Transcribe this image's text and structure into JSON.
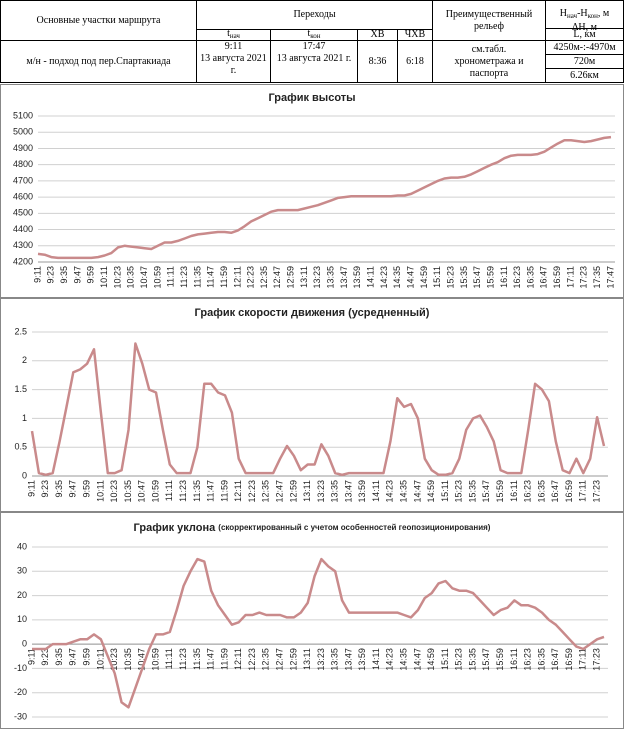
{
  "table": {
    "header": {
      "route": "Основные участки маршрута",
      "transitions": "Переходы",
      "t_start": {
        "base": "t",
        "sub": "нач"
      },
      "t_end": {
        "base": "t",
        "sub": "кон"
      },
      "hv": "ХВ",
      "chv": "ЧХВ",
      "relief": "Преимущественный рельеф",
      "h_range": {
        "h1": "H",
        "s1": "нач",
        "h2": "-H",
        "s2": "кон",
        "unit": ", м"
      },
      "dh": "ΔH, м",
      "l": "L, км"
    },
    "row": {
      "route": "м/н - подход под пер.Спартакиада",
      "t_start_time": "9:11",
      "t_start_date": "13 августа 2021 г.",
      "t_end_time": "17:47",
      "t_end_date": "13 августа 2021 г.",
      "hv": "8:36",
      "chv": "6:18",
      "relief": "см.табл. хронометража и паспорта",
      "h_range": "4250м-:-4970м",
      "dh": "720м",
      "l": "6.26км"
    }
  },
  "chart_data": [
    {
      "type": "line",
      "title": "График высоты",
      "color": "#c98a8b",
      "grid": true,
      "ylim": [
        4200,
        5100
      ],
      "yticks": [
        4200,
        4300,
        4400,
        4500,
        4600,
        4700,
        4800,
        4900,
        5000,
        5100
      ],
      "categories": [
        "9:11",
        null,
        "9:23",
        null,
        "9:35",
        null,
        "9:47",
        null,
        "9:59",
        null,
        "10:11",
        null,
        "10:23",
        null,
        "10:35",
        null,
        "10:47",
        null,
        "10:59",
        null,
        "11:11",
        null,
        "11:23",
        null,
        "11:35",
        null,
        "11:47",
        null,
        "11:59",
        null,
        "12:11",
        null,
        "12:23",
        null,
        "12:35",
        null,
        "12:47",
        null,
        "12:59",
        null,
        "13:11",
        null,
        "13:23",
        null,
        "13:35",
        null,
        "13:47",
        null,
        "13:59",
        null,
        "14:11",
        null,
        "14:23",
        null,
        "14:35",
        null,
        "14:47",
        null,
        "14:59",
        null,
        "15:11",
        null,
        "15:23",
        null,
        "15:35",
        null,
        "15:47",
        null,
        "15:59",
        null,
        "16:11",
        null,
        "16:23",
        null,
        "16:35",
        null,
        "16:47",
        null,
        "16:59",
        null,
        "17:11",
        null,
        "17:23",
        null,
        "17:35",
        null,
        "17:47"
      ],
      "values": [
        4250,
        4245,
        4230,
        4225,
        4225,
        4225,
        4225,
        4225,
        4225,
        4230,
        4240,
        4255,
        4290,
        4300,
        4295,
        4290,
        4285,
        4280,
        4300,
        4320,
        4320,
        4330,
        4345,
        4360,
        4370,
        4375,
        4380,
        4385,
        4385,
        4380,
        4395,
        4420,
        4450,
        4470,
        4490,
        4510,
        4520,
        4520,
        4520,
        4520,
        4530,
        4540,
        4550,
        4565,
        4580,
        4595,
        4600,
        4605,
        4605,
        4605,
        4605,
        4605,
        4605,
        4605,
        4610,
        4610,
        4620,
        4640,
        4660,
        4680,
        4700,
        4715,
        4720,
        4720,
        4725,
        4740,
        4760,
        4780,
        4800,
        4815,
        4840,
        4855,
        4860,
        4860,
        4860,
        4865,
        4880,
        4905,
        4930,
        4950,
        4950,
        4945,
        4940,
        4945,
        4955,
        4965,
        4970
      ]
    },
    {
      "type": "line",
      "title": "График скорости движения (усредненный)",
      "color": "#c98a8b",
      "grid": true,
      "ylim": [
        0,
        2.5
      ],
      "yticks": [
        0,
        0.5,
        1,
        1.5,
        2,
        2.5
      ],
      "categories": [
        "9:11",
        null,
        "9:23",
        null,
        "9:35",
        null,
        "9:47",
        null,
        "9:59",
        null,
        "10:11",
        null,
        "10:23",
        null,
        "10:35",
        null,
        "10:47",
        null,
        "10:59",
        null,
        "11:11",
        null,
        "11:23",
        null,
        "11:35",
        null,
        "11:47",
        null,
        "11:59",
        null,
        "12:11",
        null,
        "12:23",
        null,
        "12:35",
        null,
        "12:47",
        null,
        "12:59",
        null,
        "13:11",
        null,
        "13:23",
        null,
        "13:35",
        null,
        "13:47",
        null,
        "13:59",
        null,
        "14:11",
        null,
        "14:23",
        null,
        "14:35",
        null,
        "14:47",
        null,
        "14:59",
        null,
        "15:11",
        null,
        "15:23",
        null,
        "15:35",
        null,
        "15:47",
        null,
        "15:59",
        null,
        "16:11",
        null,
        "16:23",
        null,
        "16:35",
        null,
        "16:47",
        null,
        "16:59",
        null,
        "17:11",
        null,
        "17:23",
        null
      ],
      "values": [
        0.78,
        0.05,
        0.02,
        0.05,
        0.6,
        1.2,
        1.8,
        1.85,
        1.95,
        2.2,
        1.1,
        0.05,
        0.05,
        0.1,
        0.8,
        2.3,
        1.95,
        1.5,
        1.45,
        0.8,
        0.2,
        0.05,
        0.05,
        0.05,
        0.5,
        1.6,
        1.6,
        1.45,
        1.4,
        1.1,
        0.3,
        0.05,
        0.05,
        0.05,
        0.05,
        0.05,
        0.3,
        0.52,
        0.35,
        0.1,
        0.2,
        0.2,
        0.55,
        0.35,
        0.05,
        0.02,
        0.05,
        0.05,
        0.05,
        0.05,
        0.05,
        0.05,
        0.6,
        1.35,
        1.2,
        1.25,
        1.0,
        0.3,
        0.1,
        0.02,
        0.02,
        0.05,
        0.3,
        0.8,
        1.0,
        1.05,
        0.85,
        0.6,
        0.1,
        0.05,
        0.05,
        0.05,
        0.8,
        1.6,
        1.5,
        1.3,
        0.6,
        0.1,
        0.05,
        0.3,
        0.05,
        0.3,
        1.02,
        0.52
      ]
    },
    {
      "type": "line",
      "title": "График уклона",
      "subtitle": "(скорректированный  с учетом особенностей  геопозиционирования)",
      "color": "#c98a8b",
      "grid": true,
      "ylim": [
        -30,
        40
      ],
      "yticks": [
        -30,
        -20,
        -10,
        0,
        10,
        20,
        30,
        40
      ],
      "categories": [
        "9:11",
        null,
        "9:23",
        null,
        "9:35",
        null,
        "9:47",
        null,
        "9:59",
        null,
        "10:11",
        null,
        "10:23",
        null,
        "10:35",
        null,
        "10:47",
        null,
        "10:59",
        null,
        "11:11",
        null,
        "11:23",
        null,
        "11:35",
        null,
        "11:47",
        null,
        "11:59",
        null,
        "12:11",
        null,
        "12:23",
        null,
        "12:35",
        null,
        "12:47",
        null,
        "12:59",
        null,
        "13:11",
        null,
        "13:23",
        null,
        "13:35",
        null,
        "13:47",
        null,
        "13:59",
        null,
        "14:11",
        null,
        "14:23",
        null,
        "14:35",
        null,
        "14:47",
        null,
        "14:59",
        null,
        "15:11",
        null,
        "15:23",
        null,
        "15:35",
        null,
        "15:47",
        null,
        "15:59",
        null,
        "16:11",
        null,
        "16:23",
        null,
        "16:35",
        null,
        "16:47",
        null,
        "16:59",
        null,
        "17:11",
        null,
        "17:23",
        null
      ],
      "values": [
        -2,
        -2,
        -2,
        0,
        0,
        0,
        1,
        2,
        2,
        4,
        2,
        -5,
        -12,
        -24,
        -26,
        -18,
        -10,
        -2,
        4,
        4,
        5,
        14,
        24,
        30,
        35,
        34,
        22,
        16,
        12,
        8,
        9,
        12,
        12,
        13,
        12,
        12,
        12,
        11,
        11,
        13,
        17,
        28,
        35,
        32,
        30,
        18,
        13,
        13,
        13,
        13,
        13,
        13,
        13,
        13,
        12,
        11,
        14,
        19,
        21,
        25,
        26,
        23,
        22,
        22,
        21,
        18,
        15,
        12,
        14,
        15,
        18,
        16,
        16,
        15,
        13,
        10,
        8,
        5,
        2,
        -1,
        -2,
        0,
        2,
        3
      ]
    }
  ]
}
